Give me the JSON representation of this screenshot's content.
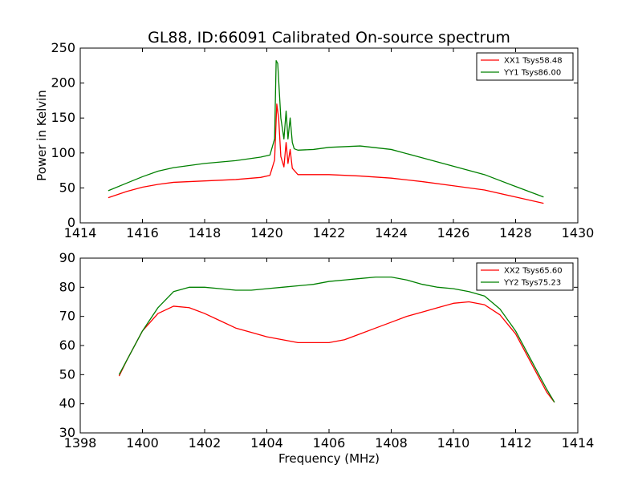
{
  "figure": {
    "title": "GL88, ID:66091 Calibrated On-source spectrum"
  },
  "chart_data": [
    {
      "type": "line",
      "title": "GL88, ID:66091 Calibrated On-source spectrum",
      "xlabel": "",
      "ylabel": "Power in Kelvin",
      "xlim": [
        1414,
        1430
      ],
      "ylim": [
        0,
        250
      ],
      "xticks": [
        "1414",
        "1416",
        "1418",
        "1420",
        "1422",
        "1424",
        "1426",
        "1428",
        "1430"
      ],
      "yticks": [
        "0",
        "50",
        "100",
        "150",
        "200",
        "250"
      ],
      "grid": false,
      "legend": "top-right",
      "series": [
        {
          "name": "XX1 Tsys58.48",
          "color": "#ff0000",
          "x": [
            1414.9,
            1415.5,
            1416.0,
            1416.5,
            1417.0,
            1418.0,
            1419.0,
            1419.8,
            1420.1,
            1420.25,
            1420.32,
            1420.38,
            1420.45,
            1420.55,
            1420.62,
            1420.68,
            1420.75,
            1420.82,
            1420.88,
            1421.0,
            1421.5,
            1422.0,
            1423.0,
            1424.0,
            1425.0,
            1426.0,
            1427.0,
            1428.0,
            1428.9
          ],
          "y": [
            36,
            45,
            51,
            55,
            58,
            60,
            62,
            65,
            68,
            90,
            170,
            150,
            95,
            80,
            115,
            85,
            105,
            78,
            75,
            69,
            69,
            69,
            67,
            64,
            59,
            53,
            47,
            37,
            28
          ]
        },
        {
          "name": "YY1 Tsys86.00",
          "color": "#008000",
          "x": [
            1414.9,
            1415.5,
            1416.0,
            1416.5,
            1417.0,
            1418.0,
            1419.0,
            1419.8,
            1420.1,
            1420.25,
            1420.3,
            1420.35,
            1420.45,
            1420.55,
            1420.62,
            1420.68,
            1420.75,
            1420.82,
            1420.88,
            1421.0,
            1421.5,
            1422.0,
            1423.0,
            1424.0,
            1425.0,
            1426.0,
            1427.0,
            1428.0,
            1428.9
          ],
          "y": [
            46,
            57,
            66,
            74,
            79,
            85,
            89,
            94,
            97,
            120,
            232,
            228,
            150,
            120,
            160,
            120,
            150,
            115,
            106,
            104,
            105,
            108,
            110,
            105,
            93,
            81,
            69,
            52,
            37
          ]
        }
      ]
    },
    {
      "type": "line",
      "title": "",
      "xlabel": "Frequency (MHz)",
      "ylabel": "",
      "xlim": [
        1398,
        1414
      ],
      "ylim": [
        30,
        90
      ],
      "xticks": [
        "1398",
        "1400",
        "1402",
        "1404",
        "1406",
        "1408",
        "1410",
        "1412",
        "1414"
      ],
      "yticks": [
        "30",
        "40",
        "50",
        "60",
        "70",
        "80",
        "90"
      ],
      "grid": false,
      "legend": "top-right",
      "series": [
        {
          "name": "XX2 Tsys65.60",
          "color": "#ff0000",
          "x": [
            1399.25,
            1399.5,
            1400.0,
            1400.5,
            1401.0,
            1401.5,
            1402.0,
            1402.5,
            1403.0,
            1403.5,
            1404.0,
            1404.5,
            1405.0,
            1405.5,
            1406.0,
            1406.5,
            1407.0,
            1407.5,
            1408.0,
            1408.5,
            1409.0,
            1409.5,
            1410.0,
            1410.5,
            1411.0,
            1411.5,
            1412.0,
            1412.5,
            1413.0,
            1413.25
          ],
          "y": [
            49.5,
            55,
            65,
            71,
            73.5,
            73,
            71,
            68.5,
            66,
            64.5,
            63,
            62,
            61,
            61,
            61,
            62,
            64,
            66,
            68,
            70,
            71.5,
            73,
            74.5,
            75,
            74,
            70.5,
            64,
            54,
            44,
            40.5
          ]
        },
        {
          "name": "YY2 Tsys75.23",
          "color": "#008000",
          "x": [
            1399.25,
            1399.5,
            1400.0,
            1400.5,
            1401.0,
            1401.5,
            1402.0,
            1402.5,
            1403.0,
            1403.5,
            1404.0,
            1404.5,
            1405.0,
            1405.5,
            1406.0,
            1406.5,
            1407.0,
            1407.5,
            1408.0,
            1408.5,
            1409.0,
            1409.5,
            1410.0,
            1410.5,
            1411.0,
            1411.5,
            1412.0,
            1412.5,
            1413.0,
            1413.25
          ],
          "y": [
            50,
            55,
            65,
            73,
            78.5,
            80,
            80,
            79.5,
            79,
            79,
            79.5,
            80,
            80.5,
            81,
            82,
            82.5,
            83,
            83.5,
            83.5,
            82.5,
            81,
            80,
            79.5,
            78.5,
            77,
            72.5,
            65,
            55,
            45,
            40.5
          ]
        }
      ]
    }
  ]
}
